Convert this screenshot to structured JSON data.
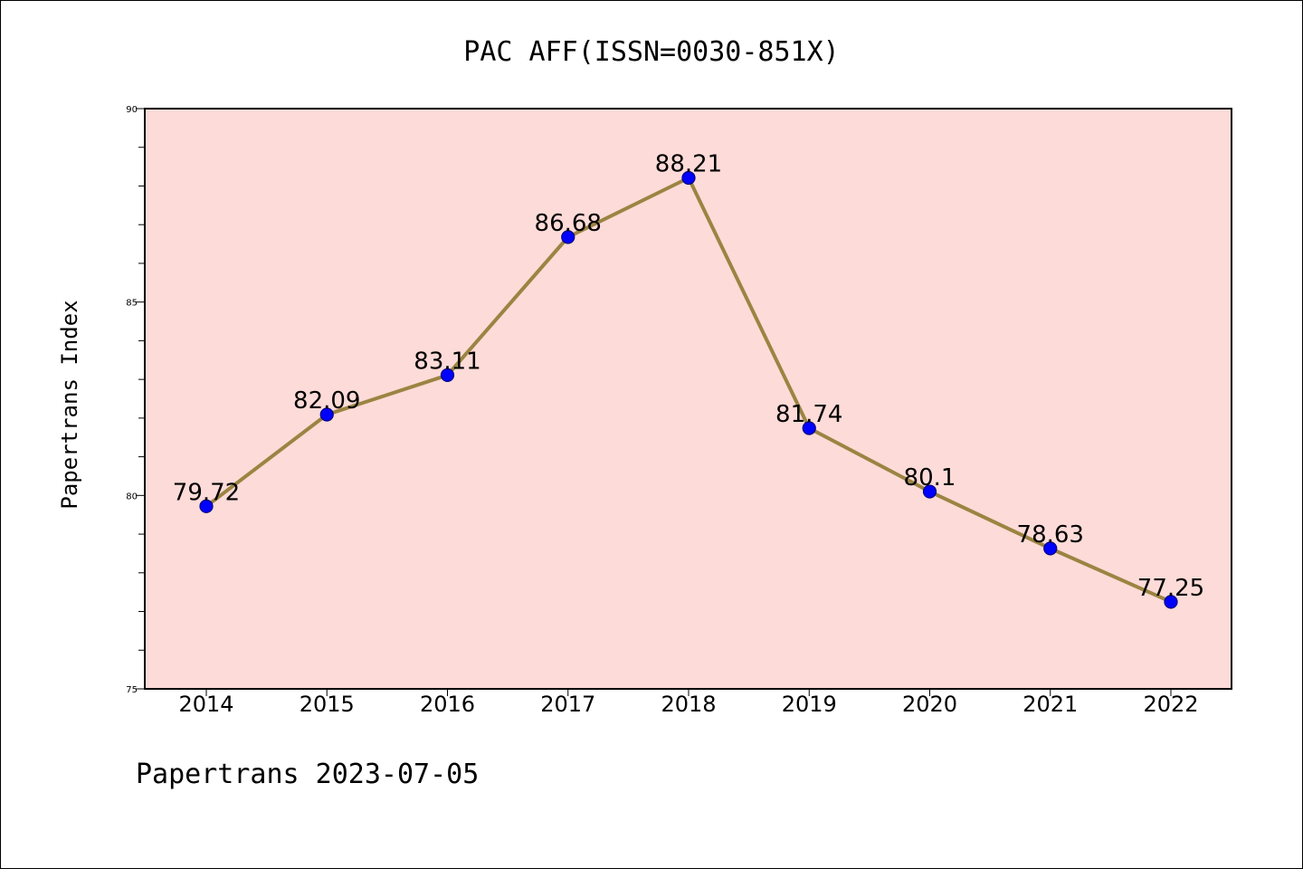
{
  "chart_data": {
    "type": "line",
    "title": "PAC AFF(ISSN=0030-851X)",
    "ylabel": "Papertrans Index",
    "xlabel": "",
    "footer": "Papertrans 2023-07-05",
    "categories": [
      "2014",
      "2015",
      "2016",
      "2017",
      "2018",
      "2019",
      "2020",
      "2021",
      "2022"
    ],
    "series": [
      {
        "values": [
          79.72,
          82.09,
          83.11,
          86.68,
          88.21,
          81.74,
          80.1,
          78.63,
          77.25
        ],
        "labels": [
          "79.72",
          "82.09",
          "83.11",
          "86.68",
          "88.21",
          "81.74",
          "80.1",
          "78.63",
          "77.25"
        ]
      }
    ],
    "ylim": [
      75,
      90
    ],
    "yticks": [
      75,
      80,
      85,
      90
    ],
    "ytick_labels": [
      "75",
      "80",
      "85",
      "90"
    ],
    "grid": false,
    "legend": "none",
    "colors": {
      "plot_background": "#fddbd8",
      "line": "#9b8442",
      "marker": "#0000ff",
      "marker_edge": "#000080"
    }
  }
}
